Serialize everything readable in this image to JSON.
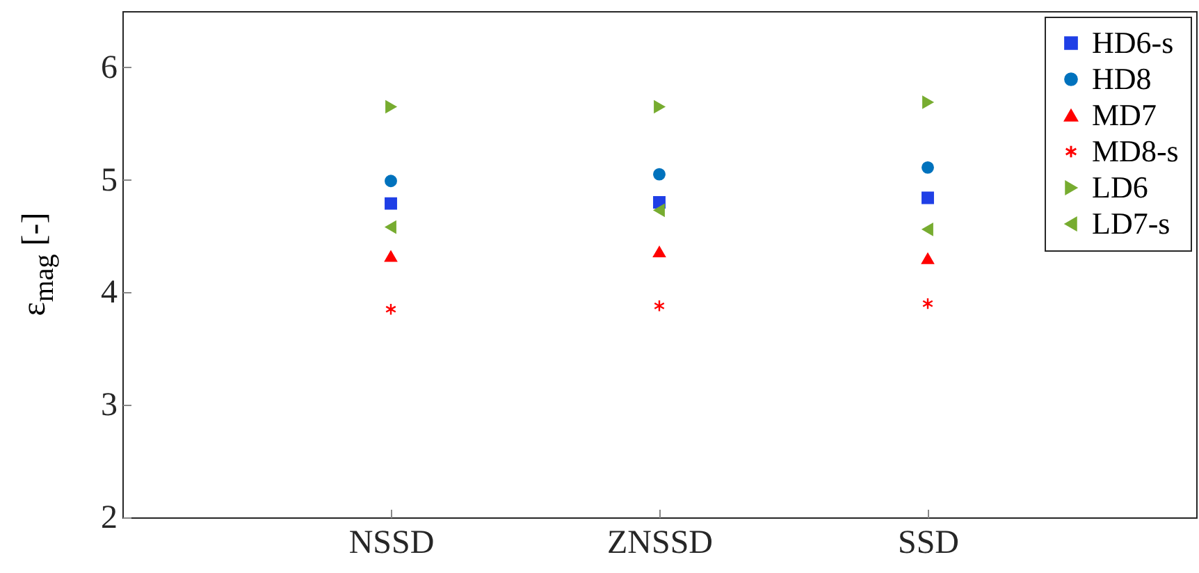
{
  "chart_data": {
    "type": "scatter",
    "ylabel": "ε$_{mag}$ [-]",
    "categories": [
      "NSSD",
      "ZNSSD",
      "SSD"
    ],
    "ylim": [
      2,
      6.5
    ],
    "yticks": [
      2,
      3,
      4,
      5,
      6
    ],
    "grid": false,
    "legend": "top right",
    "series": [
      {
        "name": "HD6-s",
        "color": "#1f3fe6",
        "marker": "square",
        "values": [
          4.79,
          4.8,
          4.84
        ]
      },
      {
        "name": "HD8",
        "color": "#0072bd",
        "marker": "circle",
        "values": [
          4.99,
          5.05,
          5.11
        ]
      },
      {
        "name": "MD7",
        "color": "#ff0000",
        "marker": "triangle",
        "values": [
          4.32,
          4.36,
          4.3
        ]
      },
      {
        "name": "MD8-s",
        "color": "#ff0000",
        "marker": "cross",
        "values": [
          3.85,
          3.88,
          3.9
        ]
      },
      {
        "name": "LD6",
        "color": "#77ac30",
        "marker": "triangle-right",
        "values": [
          5.65,
          5.65,
          5.69
        ]
      },
      {
        "name": "LD7-s",
        "color": "#77ac30",
        "marker": "triangle-left",
        "values": [
          4.58,
          4.73,
          4.56
        ]
      }
    ]
  }
}
